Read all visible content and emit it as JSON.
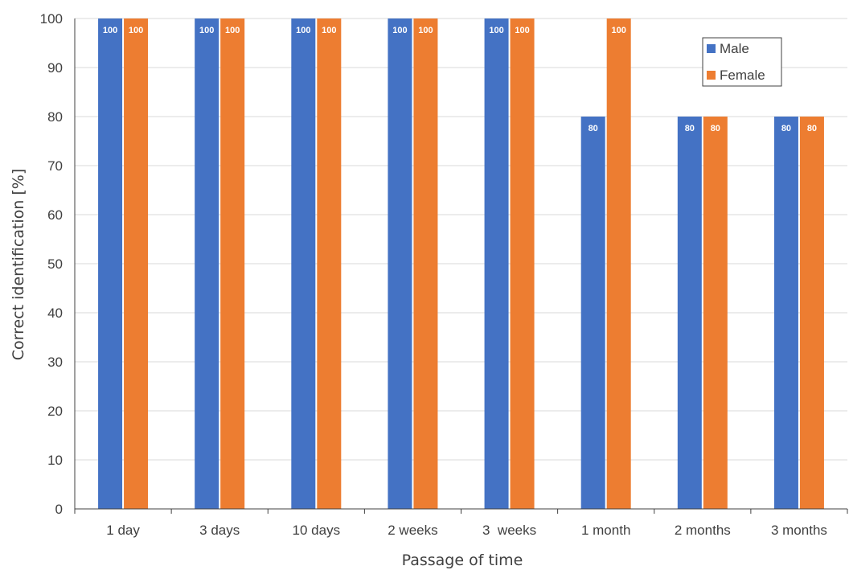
{
  "chart_data": {
    "type": "bar",
    "categories": [
      "1 day",
      "3 days",
      "10 days",
      "2 weeks",
      "3  weeks",
      "1 month",
      "2 months",
      "3 months"
    ],
    "series": [
      {
        "name": "Male",
        "color": "#4472C4",
        "values": [
          100,
          100,
          100,
          100,
          100,
          80,
          80,
          80
        ]
      },
      {
        "name": "Female",
        "color": "#ED7D31",
        "values": [
          100,
          100,
          100,
          100,
          100,
          100,
          80,
          80
        ]
      }
    ],
    "data_labels": [
      [
        "100",
        "100",
        "100",
        "100",
        "100",
        "80",
        "80",
        "80"
      ],
      [
        "100",
        "100",
        "100",
        "100",
        "100",
        "100",
        "80",
        "80"
      ]
    ],
    "xlabel": "Passage of time",
    "ylabel": "Correct identification [%]",
    "ylim": [
      0,
      100
    ],
    "yticks": [
      0,
      10,
      20,
      30,
      40,
      50,
      60,
      70,
      80,
      90,
      100
    ],
    "grid": true,
    "legend_position": "top-right"
  }
}
